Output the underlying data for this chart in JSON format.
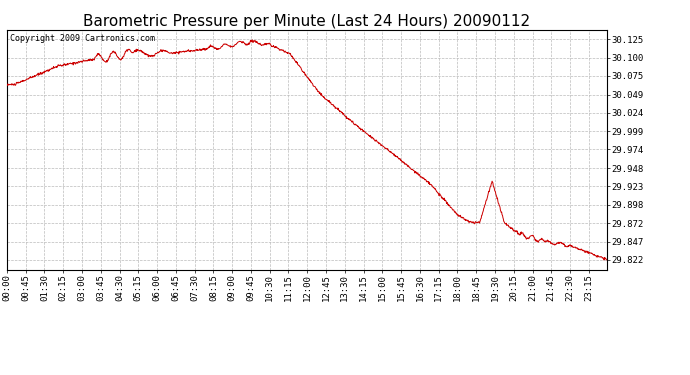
{
  "title": "Barometric Pressure per Minute (Last 24 Hours) 20090112",
  "copyright": "Copyright 2009 Cartronics.com",
  "line_color": "#cc0000",
  "bg_color": "#ffffff",
  "plot_bg_color": "#ffffff",
  "grid_color": "#bbbbbb",
  "yticks": [
    29.822,
    29.847,
    29.872,
    29.898,
    29.923,
    29.948,
    29.974,
    29.999,
    30.024,
    30.049,
    30.075,
    30.1,
    30.125
  ],
  "ylim": [
    29.808,
    30.138
  ],
  "xtick_labels": [
    "00:00",
    "00:45",
    "01:30",
    "02:15",
    "03:00",
    "03:45",
    "04:30",
    "05:15",
    "06:00",
    "06:45",
    "07:30",
    "08:15",
    "09:00",
    "09:45",
    "10:30",
    "11:15",
    "12:00",
    "12:45",
    "13:30",
    "14:15",
    "15:00",
    "15:45",
    "16:30",
    "17:15",
    "18:00",
    "18:45",
    "19:30",
    "20:15",
    "21:00",
    "21:45",
    "22:30",
    "23:15"
  ],
  "title_fontsize": 11,
  "axis_fontsize": 6.5,
  "copyright_fontsize": 6
}
